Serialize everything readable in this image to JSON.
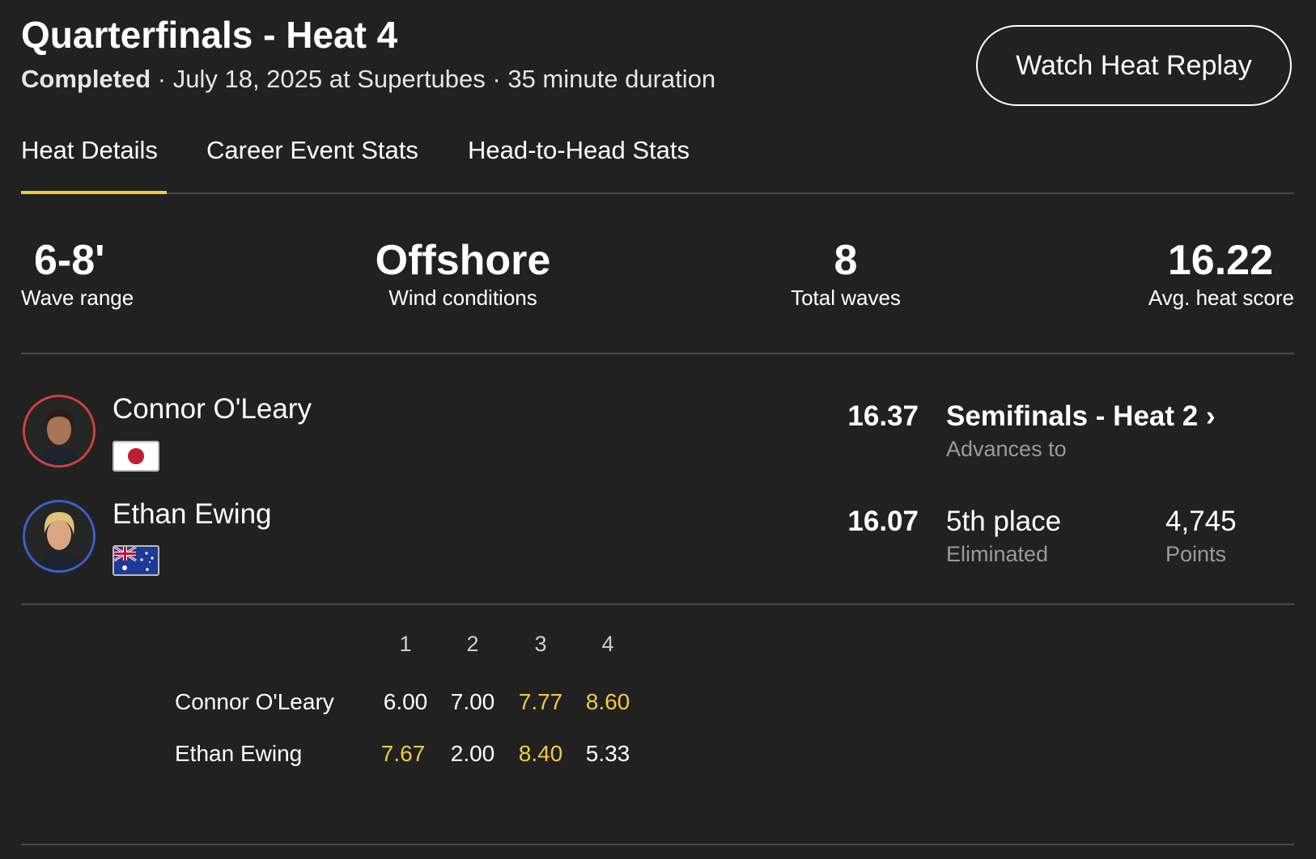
{
  "header": {
    "title": "Quarterfinals - Heat 4",
    "status": "Completed",
    "details": " · July 18, 2025 at Supertubes · 35 minute duration",
    "replay_button": "Watch Heat Replay"
  },
  "tabs": [
    {
      "label": "Heat Details",
      "active": true
    },
    {
      "label": "Career Event Stats"
    },
    {
      "label": "Head-to-Head Stats"
    }
  ],
  "stats": [
    {
      "value": "6-8'",
      "label": "Wave range"
    },
    {
      "value": "Offshore",
      "label": "Wind conditions"
    },
    {
      "value": "8",
      "label": "Total waves"
    },
    {
      "value": "16.22",
      "label": "Avg. heat score"
    }
  ],
  "athletes": [
    {
      "name": "Connor O'Leary",
      "flag": "Japan",
      "ring_color": "#d0403c",
      "score": "16.37",
      "result": "Semifinals - Heat 2",
      "result_sub": "Advances to"
    },
    {
      "name": "Ethan Ewing",
      "flag": "Australia",
      "ring_color": "#3a5fc8",
      "score": "16.07",
      "result": "5th place",
      "result_sub": "Eliminated",
      "points": "4,745",
      "points_label": "Points"
    }
  ],
  "wave_table": {
    "columns": [
      "1",
      "2",
      "3",
      "4"
    ],
    "rows": [
      {
        "name": "Connor O'Leary",
        "scores": [
          "6.00",
          "7.00",
          "7.77",
          "8.60"
        ],
        "highlight": [
          false,
          false,
          true,
          true
        ]
      },
      {
        "name": "Ethan Ewing",
        "scores": [
          "7.67",
          "2.00",
          "8.40",
          "5.33"
        ],
        "highlight": [
          true,
          false,
          true,
          false
        ]
      }
    ]
  },
  "colors": {
    "accent": "#f5c842",
    "background": "#212121"
  }
}
